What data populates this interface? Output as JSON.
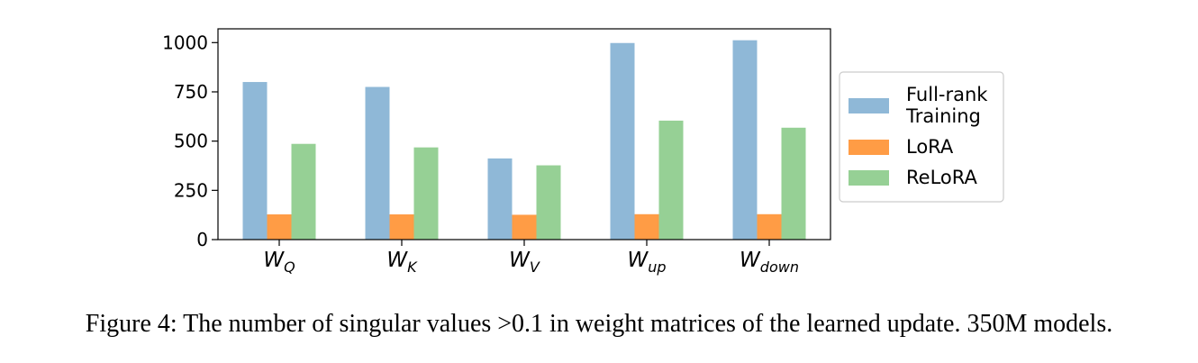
{
  "chart_data": {
    "type": "bar",
    "categories": [
      {
        "main": "W",
        "sub": "Q"
      },
      {
        "main": "W",
        "sub": "K"
      },
      {
        "main": "W",
        "sub": "V"
      },
      {
        "main": "W",
        "sub": "up"
      },
      {
        "main": "W",
        "sub": "down"
      }
    ],
    "series": [
      {
        "name": "Full-rank Training",
        "legend_lines": [
          "Full-rank",
          "Training"
        ],
        "color": "#8fb8d7",
        "values": [
          800,
          775,
          412,
          998,
          1012
        ]
      },
      {
        "name": "LoRA",
        "legend_lines": [
          "LoRA"
        ],
        "color": "#ff9c45",
        "values": [
          128,
          128,
          126,
          129,
          129
        ]
      },
      {
        "name": "ReLoRA",
        "legend_lines": [
          "ReLoRA"
        ],
        "color": "#96d095",
        "values": [
          486,
          468,
          377,
          604,
          568
        ]
      }
    ],
    "yticks": [
      0,
      250,
      500,
      750,
      1000
    ],
    "ylim": [
      0,
      1070
    ],
    "legend_position": "right, outside"
  },
  "caption": "Figure 4: The number of singular values >0.1 in weight matrices of the learned update. 350M models."
}
